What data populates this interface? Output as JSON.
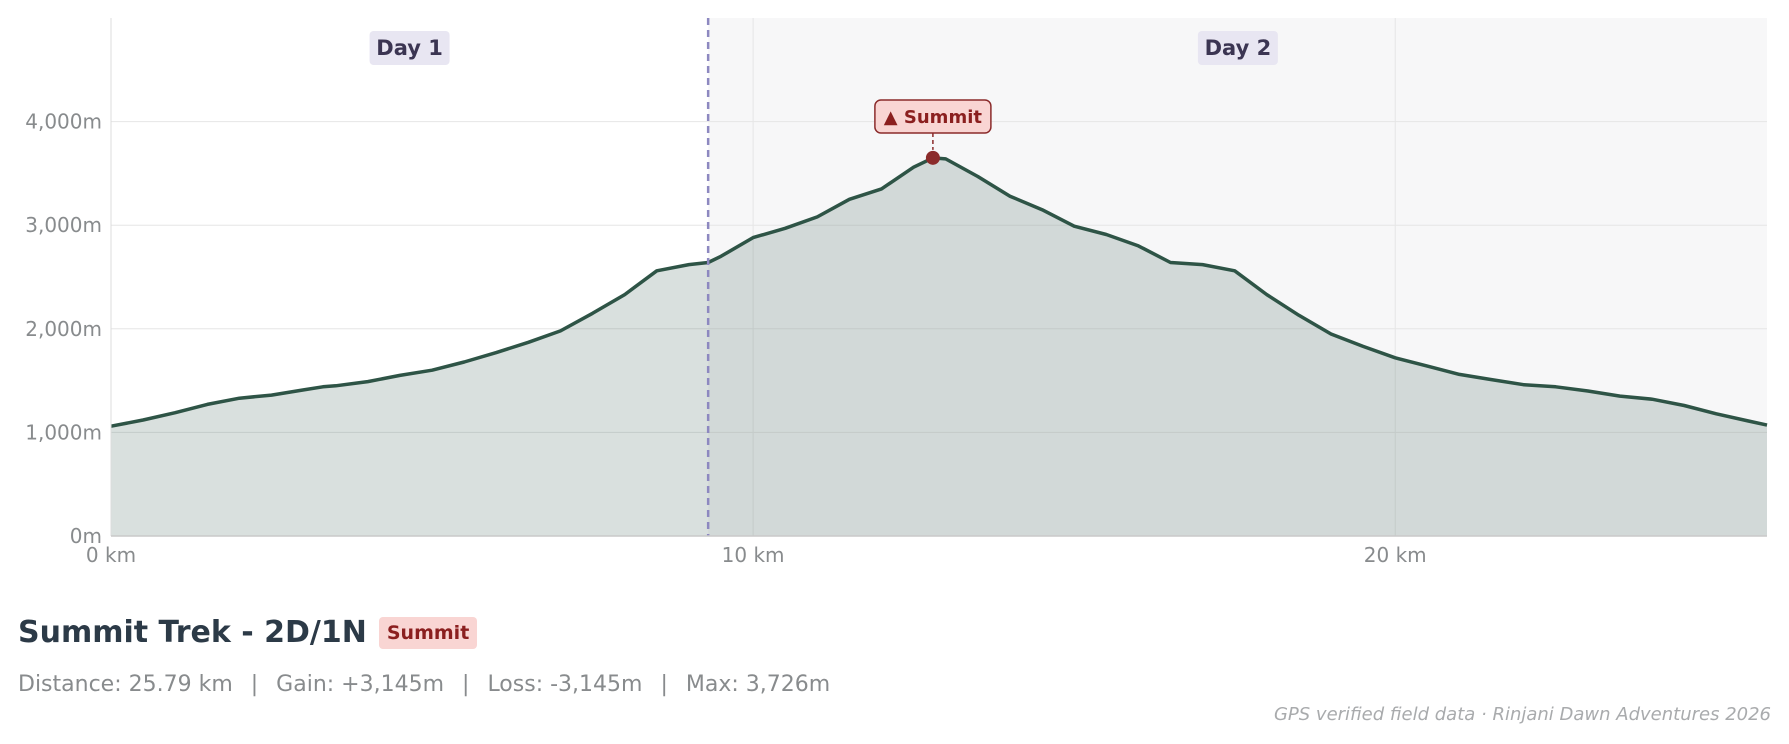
{
  "chart_data": {
    "type": "area",
    "xlabel": "",
    "ylabel": "",
    "xlim": [
      0,
      25.79
    ],
    "ylim": [
      0,
      5000
    ],
    "x_ticks": [
      {
        "value": 0,
        "label": "0 km"
      },
      {
        "value": 10,
        "label": "10 km"
      },
      {
        "value": 20,
        "label": "20 km"
      }
    ],
    "y_ticks": [
      {
        "value": 0,
        "label": "0m"
      },
      {
        "value": 1000,
        "label": "1,000m"
      },
      {
        "value": 2000,
        "label": "2,000m"
      },
      {
        "value": 3000,
        "label": "3,000m"
      },
      {
        "value": 4000,
        "label": "4,000m"
      }
    ],
    "grid": true,
    "line_color": "#2e5446",
    "fill_color": "#2e5446",
    "day_split_km": 9.3,
    "day_labels": [
      {
        "label": "Day 1",
        "x": 4.65
      },
      {
        "label": "Day 2",
        "x": 17.55
      }
    ],
    "summit": {
      "label": "▲ Summit",
      "x": 12.8,
      "y": 3650,
      "color": "#8b2b2b"
    },
    "x": [
      0,
      0.5,
      1,
      1.5,
      2,
      2.5,
      3,
      3.3,
      3.5,
      4,
      4.5,
      5,
      5.5,
      6,
      6.5,
      7,
      7.5,
      8,
      8.5,
      9,
      9.3,
      9.5,
      10,
      10.5,
      11,
      11.5,
      12,
      12.5,
      12.8,
      13,
      13.5,
      14,
      14.5,
      15,
      15.5,
      16,
      16.5,
      17,
      17.5,
      18,
      18.5,
      19,
      19.5,
      20,
      20.5,
      21,
      21.5,
      22,
      22.5,
      23,
      23.5,
      24,
      24.5,
      25,
      25.5,
      25.79
    ],
    "y": [
      1060,
      1120,
      1190,
      1270,
      1330,
      1360,
      1410,
      1440,
      1450,
      1490,
      1550,
      1600,
      1680,
      1770,
      1870,
      1980,
      2150,
      2330,
      2560,
      2620,
      2640,
      2700,
      2880,
      2970,
      3080,
      3250,
      3350,
      3560,
      3650,
      3640,
      3470,
      3280,
      3150,
      2990,
      2910,
      2800,
      2640,
      2620,
      2560,
      2330,
      2130,
      1950,
      1830,
      1720,
      1640,
      1560,
      1510,
      1460,
      1440,
      1400,
      1350,
      1320,
      1260,
      1180,
      1110,
      1070
    ]
  },
  "footer": {
    "title": "Summit Trek - 2D/1N",
    "badge": "Summit",
    "stats": {
      "distance": "Distance: 25.79 km",
      "gain": "Gain: +3,145m",
      "loss": "Loss: -3,145m",
      "max": "Max: 3,726m",
      "separator": "|"
    },
    "credit": "GPS verified field data · Rinjani Dawn Adventures 2026"
  }
}
